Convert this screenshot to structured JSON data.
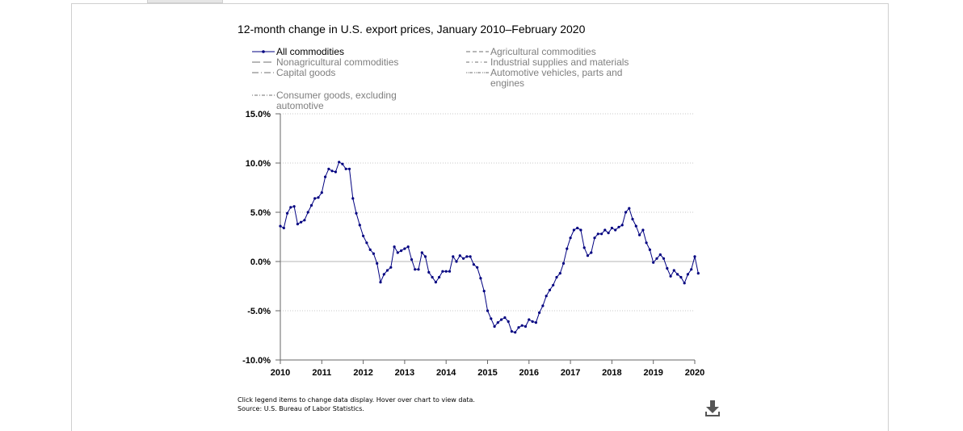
{
  "chart_data": {
    "type": "line",
    "title": "12-month change in U.S. export prices, January 2010–February 2020",
    "legend": [
      "All commodities",
      "Agricultural commodities",
      "Nonagricultural commodities",
      "Industrial supplies and materials",
      "Capital goods",
      "Automotive vehicles, parts and engines",
      "Consumer goods, excluding automotive"
    ],
    "x_tick_labels": [
      "2010",
      "2011",
      "2012",
      "2013",
      "2014",
      "2015",
      "2016",
      "2017",
      "2018",
      "2019",
      "2020"
    ],
    "y_tick_labels": [
      "15.0%",
      "10.0%",
      "5.0%",
      "0.0%",
      "-5.0%",
      "-10.0%"
    ],
    "ylim": [
      -10,
      15
    ],
    "x_range": [
      "2010-01",
      "2020-02"
    ],
    "grid": "horizontal dotted",
    "legend_position": "top",
    "series": [
      {
        "name": "All commodities",
        "color": "#000080",
        "start": "2010-01",
        "values": [
          3.6,
          3.4,
          4.9,
          5.5,
          5.6,
          3.8,
          4.0,
          4.2,
          5.0,
          5.7,
          6.4,
          6.5,
          7.0,
          8.6,
          9.4,
          9.2,
          9.1,
          10.1,
          9.9,
          9.4,
          9.4,
          6.4,
          4.9,
          3.7,
          2.6,
          1.9,
          1.2,
          0.8,
          -0.2,
          -2.1,
          -1.3,
          -0.9,
          -0.6,
          1.5,
          0.9,
          1.1,
          1.3,
          1.5,
          0.2,
          -0.8,
          -0.8,
          0.9,
          0.5,
          -1.1,
          -1.6,
          -2.1,
          -1.6,
          -1.0,
          -1.0,
          -1.0,
          0.5,
          0.0,
          0.6,
          0.3,
          0.5,
          0.5,
          -0.3,
          -0.6,
          -1.7,
          -3.0,
          -5.0,
          -5.8,
          -6.6,
          -6.2,
          -5.9,
          -5.7,
          -6.1,
          -7.1,
          -7.2,
          -6.7,
          -6.5,
          -6.6,
          -5.9,
          -6.1,
          -6.2,
          -5.2,
          -4.5,
          -3.5,
          -2.9,
          -2.4,
          -1.6,
          -1.2,
          -0.2,
          1.3,
          2.4,
          3.2,
          3.4,
          3.2,
          1.4,
          0.6,
          0.9,
          2.4,
          2.8,
          2.8,
          3.2,
          2.9,
          3.4,
          3.2,
          3.5,
          3.7,
          5.0,
          5.4,
          4.3,
          3.6,
          2.7,
          3.2,
          1.9,
          1.2,
          -0.1,
          0.3,
          0.7,
          0.3,
          -0.7,
          -1.5,
          -0.9,
          -1.3,
          -1.6,
          -2.2,
          -1.3,
          -0.8,
          0.5,
          -1.2
        ]
      }
    ]
  },
  "footnote": {
    "line1": "Click legend items to change data display. Hover over chart to view data.",
    "line2": "Source: U.S. Bureau of Labor Statistics."
  },
  "icons": {
    "download": "download-icon"
  }
}
